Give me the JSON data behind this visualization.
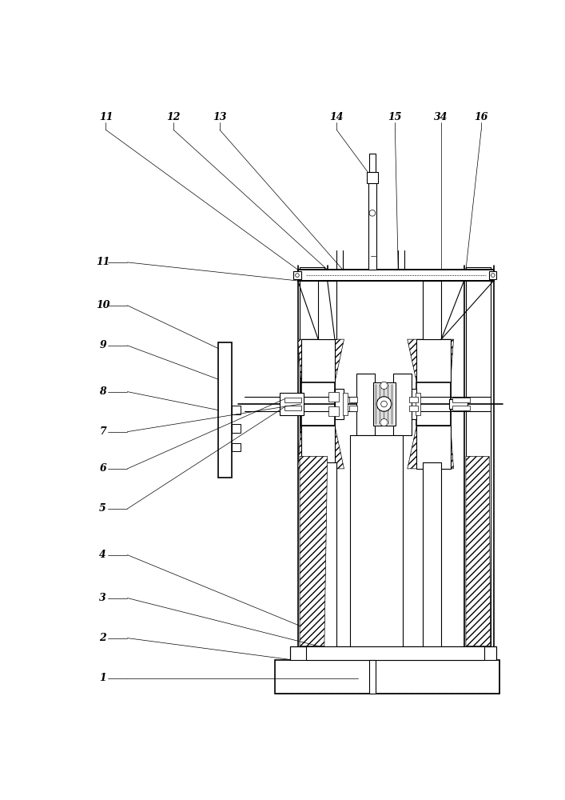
{
  "bg_color": "#ffffff",
  "line_color": "#000000",
  "figsize": [
    7.07,
    10.0
  ],
  "dpi": 100,
  "labels_left": [
    "1",
    "2",
    "3",
    "4",
    "5",
    "6",
    "7",
    "8",
    "9",
    "10",
    "11"
  ],
  "labels_top": [
    "11",
    "12",
    "13",
    "14",
    "15",
    "34",
    "16"
  ]
}
